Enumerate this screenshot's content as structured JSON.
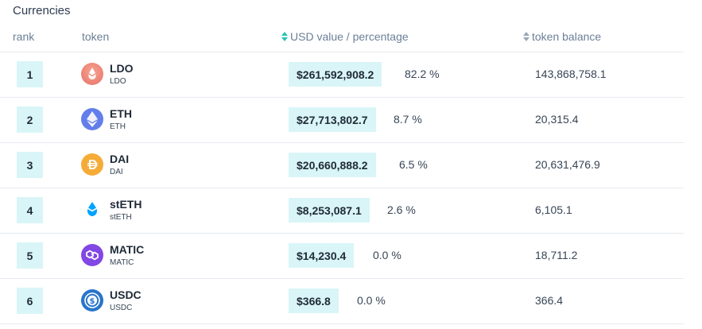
{
  "section_title": "Currencies",
  "columns": {
    "rank": "rank",
    "token": "token",
    "usd": "USD value / percentage",
    "balance": "token balance"
  },
  "rows": [
    {
      "rank": "1",
      "name": "LDO",
      "symbol": "LDO",
      "icon": "ldo-icon",
      "color": "#ef7f6e",
      "usd": "$261,592,908.2",
      "pct": "82.2 %",
      "balance": "143,868,758.1"
    },
    {
      "rank": "2",
      "name": "ETH",
      "symbol": "ETH",
      "icon": "eth-icon",
      "color": "#627eea",
      "usd": "$27,713,802.7",
      "pct": "8.7 %",
      "balance": "20,315.4"
    },
    {
      "rank": "3",
      "name": "DAI",
      "symbol": "DAI",
      "icon": "dai-icon",
      "color": "#f5ac37",
      "usd": "$20,660,888.2",
      "pct": "6.5 %",
      "balance": "20,631,476.9"
    },
    {
      "rank": "4",
      "name": "stETH",
      "symbol": "stETH",
      "icon": "steth-icon",
      "color": "#00a3ff",
      "usd": "$8,253,087.1",
      "pct": "2.6 %",
      "balance": "6,105.1"
    },
    {
      "rank": "5",
      "name": "MATIC",
      "symbol": "MATIC",
      "icon": "matic-icon",
      "color": "#8247e5",
      "usd": "$14,230.4",
      "pct": "0.0 %",
      "balance": "18,711.2"
    },
    {
      "rank": "6",
      "name": "USDC",
      "symbol": "USDC",
      "icon": "usdc-icon",
      "color": "#2775ca",
      "usd": "$366.8",
      "pct": "0.0 %",
      "balance": "366.4"
    }
  ]
}
